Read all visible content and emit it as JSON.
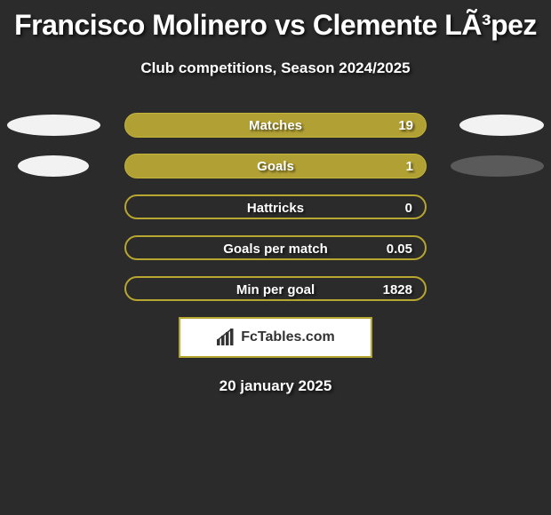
{
  "title": "Francisco Molinero vs Clemente LÃ³pez",
  "subtitle": "Club competitions, Season 2024/2025",
  "date": "20 january 2025",
  "brand": "FcTables.com",
  "colors": {
    "background": "#2b2b2b",
    "bar_fill": "#b1a034",
    "bar_border": "#c3b53a",
    "bar_hollow_border": "#b7a62f",
    "bar_hollow_fill": "#2b2b2b",
    "ellipse_white": "#f2f2f2",
    "ellipse_faded": "#5a5a5a",
    "text": "#ffffff"
  },
  "ellipse_sizing": {
    "left_large_w": 105,
    "right_large_w": 95,
    "left_small_w": 80,
    "right_small_w": 105,
    "height": 24
  },
  "rows": [
    {
      "label": "Matches",
      "value": "19",
      "filled": true,
      "left_ellipse": {
        "present": true,
        "color": "white",
        "size": "large"
      },
      "right_ellipse": {
        "present": true,
        "color": "white",
        "size": "large"
      }
    },
    {
      "label": "Goals",
      "value": "1",
      "filled": true,
      "left_ellipse": {
        "present": true,
        "color": "white",
        "size": "small"
      },
      "right_ellipse": {
        "present": true,
        "color": "faded",
        "size": "small"
      }
    },
    {
      "label": "Hattricks",
      "value": "0",
      "filled": false,
      "left_ellipse": {
        "present": false
      },
      "right_ellipse": {
        "present": false
      }
    },
    {
      "label": "Goals per match",
      "value": "0.05",
      "filled": false,
      "left_ellipse": {
        "present": false
      },
      "right_ellipse": {
        "present": false
      }
    },
    {
      "label": "Min per goal",
      "value": "1828",
      "filled": false,
      "left_ellipse": {
        "present": false
      },
      "right_ellipse": {
        "present": false
      }
    }
  ]
}
